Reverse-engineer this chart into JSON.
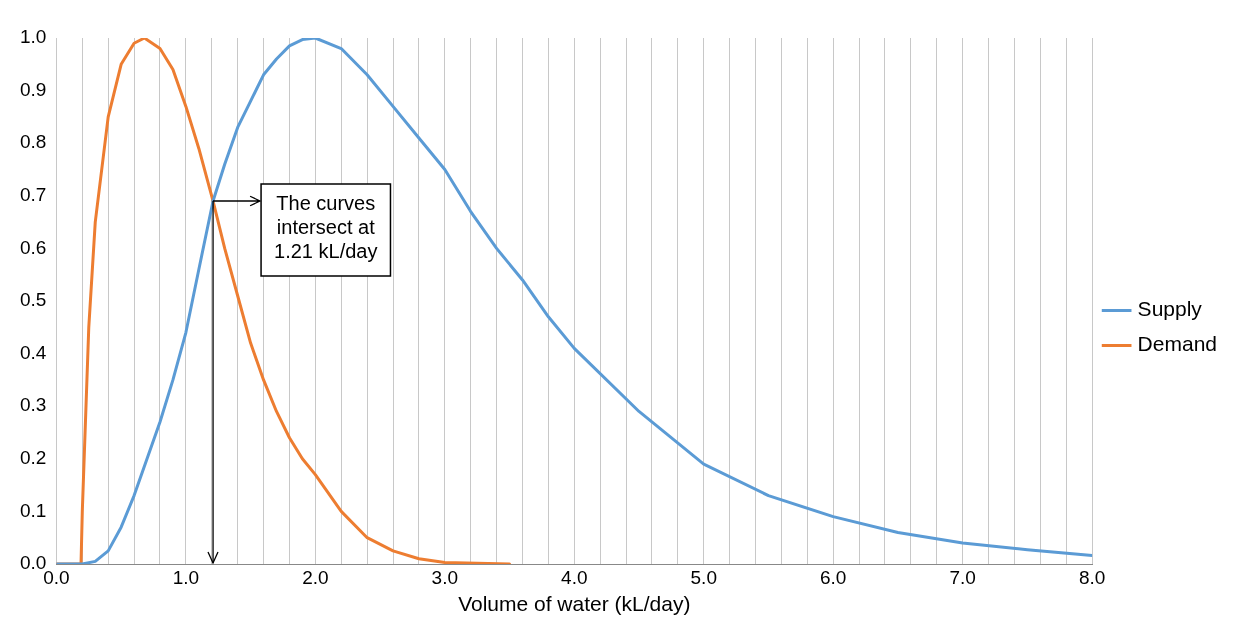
{
  "chart_data": {
    "type": "line",
    "xlabel": "Volume of water (kL/day)",
    "xlim": [
      0,
      8
    ],
    "ylim": [
      0,
      1
    ],
    "xticks": [
      {
        "value": 0,
        "label": "0.0"
      },
      {
        "value": 0.2,
        "label": null
      },
      {
        "value": 0.4,
        "label": null
      },
      {
        "value": 0.6,
        "label": null
      },
      {
        "value": 0.8,
        "label": null
      },
      {
        "value": 1,
        "label": "1.0"
      },
      {
        "value": 1.2,
        "label": null
      },
      {
        "value": 1.4,
        "label": null
      },
      {
        "value": 1.6,
        "label": null
      },
      {
        "value": 1.8,
        "label": null
      },
      {
        "value": 2,
        "label": "2.0"
      },
      {
        "value": 2.2,
        "label": null
      },
      {
        "value": 2.4,
        "label": null
      },
      {
        "value": 2.6,
        "label": null
      },
      {
        "value": 2.8,
        "label": null
      },
      {
        "value": 3,
        "label": "3.0"
      },
      {
        "value": 3.2,
        "label": null
      },
      {
        "value": 3.4,
        "label": null
      },
      {
        "value": 3.6,
        "label": null
      },
      {
        "value": 3.8,
        "label": null
      },
      {
        "value": 4,
        "label": "4.0"
      },
      {
        "value": 4.2,
        "label": null
      },
      {
        "value": 4.4,
        "label": null
      },
      {
        "value": 4.6,
        "label": null
      },
      {
        "value": 4.8,
        "label": null
      },
      {
        "value": 5,
        "label": "5.0"
      },
      {
        "value": 5.2,
        "label": null
      },
      {
        "value": 5.4,
        "label": null
      },
      {
        "value": 5.6,
        "label": null
      },
      {
        "value": 5.8,
        "label": null
      },
      {
        "value": 6,
        "label": "6.0"
      },
      {
        "value": 6.2,
        "label": null
      },
      {
        "value": 6.4,
        "label": null
      },
      {
        "value": 6.6,
        "label": null
      },
      {
        "value": 6.8,
        "label": null
      },
      {
        "value": 7,
        "label": "7.0"
      },
      {
        "value": 7.2,
        "label": null
      },
      {
        "value": 7.4,
        "label": null
      },
      {
        "value": 7.6,
        "label": null
      },
      {
        "value": 7.8,
        "label": null
      },
      {
        "value": 8,
        "label": "8.0"
      }
    ],
    "yticks": [
      {
        "value": 0,
        "label": "0.0"
      },
      {
        "value": 0.1,
        "label": "0.1"
      },
      {
        "value": 0.2,
        "label": "0.2"
      },
      {
        "value": 0.3,
        "label": "0.3"
      },
      {
        "value": 0.4,
        "label": "0.4"
      },
      {
        "value": 0.5,
        "label": "0.5"
      },
      {
        "value": 0.6,
        "label": "0.6"
      },
      {
        "value": 0.7,
        "label": "0.7"
      },
      {
        "value": 0.8,
        "label": "0.8"
      },
      {
        "value": 0.9,
        "label": "0.9"
      },
      {
        "value": 1,
        "label": "1.0"
      }
    ],
    "ref_lines": [
      {
        "axis": "x",
        "value": 1.21,
        "color": "#000000"
      }
    ],
    "grid": "x",
    "legend": "right",
    "marker": "none",
    "line_style": "solid",
    "annotations": [
      {
        "text": "The curves intersect at 1.21 kL/day",
        "x": 1.21,
        "y": 0.69
      }
    ],
    "series": [
      {
        "name": "Supply",
        "color": "#5b9bd5",
        "x": [
          0,
          0.2,
          0.3,
          0.4,
          0.5,
          0.6,
          0.7,
          0.8,
          0.9,
          1.0,
          1.1,
          1.21,
          1.3,
          1.4,
          1.5,
          1.6,
          1.7,
          1.8,
          1.9,
          2.0,
          2.2,
          2.4,
          2.6,
          2.8,
          3.0,
          3.2,
          3.4,
          3.6,
          3.8,
          4.0,
          4.5,
          5.0,
          5.5,
          6.0,
          6.5,
          7.0,
          7.5,
          8.0
        ],
        "values": [
          0,
          0,
          0.005,
          0.025,
          0.07,
          0.13,
          0.2,
          0.27,
          0.35,
          0.44,
          0.56,
          0.69,
          0.76,
          0.83,
          0.88,
          0.93,
          0.96,
          0.985,
          0.997,
          1.0,
          0.98,
          0.93,
          0.87,
          0.81,
          0.75,
          0.67,
          0.6,
          0.54,
          0.47,
          0.41,
          0.29,
          0.19,
          0.13,
          0.09,
          0.06,
          0.04,
          0.027,
          0.016
        ]
      },
      {
        "name": "Demand",
        "color": "#ed7d31",
        "x": [
          0,
          0.19,
          0.2,
          0.25,
          0.3,
          0.4,
          0.5,
          0.6,
          0.68,
          0.8,
          0.9,
          1.0,
          1.1,
          1.21,
          1.3,
          1.4,
          1.5,
          1.6,
          1.7,
          1.8,
          1.9,
          2.0,
          2.2,
          2.4,
          2.6,
          2.8,
          3.0,
          3.5
        ],
        "values": [
          0,
          0,
          0.1,
          0.45,
          0.65,
          0.85,
          0.95,
          0.99,
          1.0,
          0.98,
          0.94,
          0.87,
          0.79,
          0.69,
          0.6,
          0.51,
          0.42,
          0.35,
          0.29,
          0.24,
          0.2,
          0.17,
          0.1,
          0.05,
          0.025,
          0.01,
          0.003,
          0
        ]
      }
    ]
  }
}
